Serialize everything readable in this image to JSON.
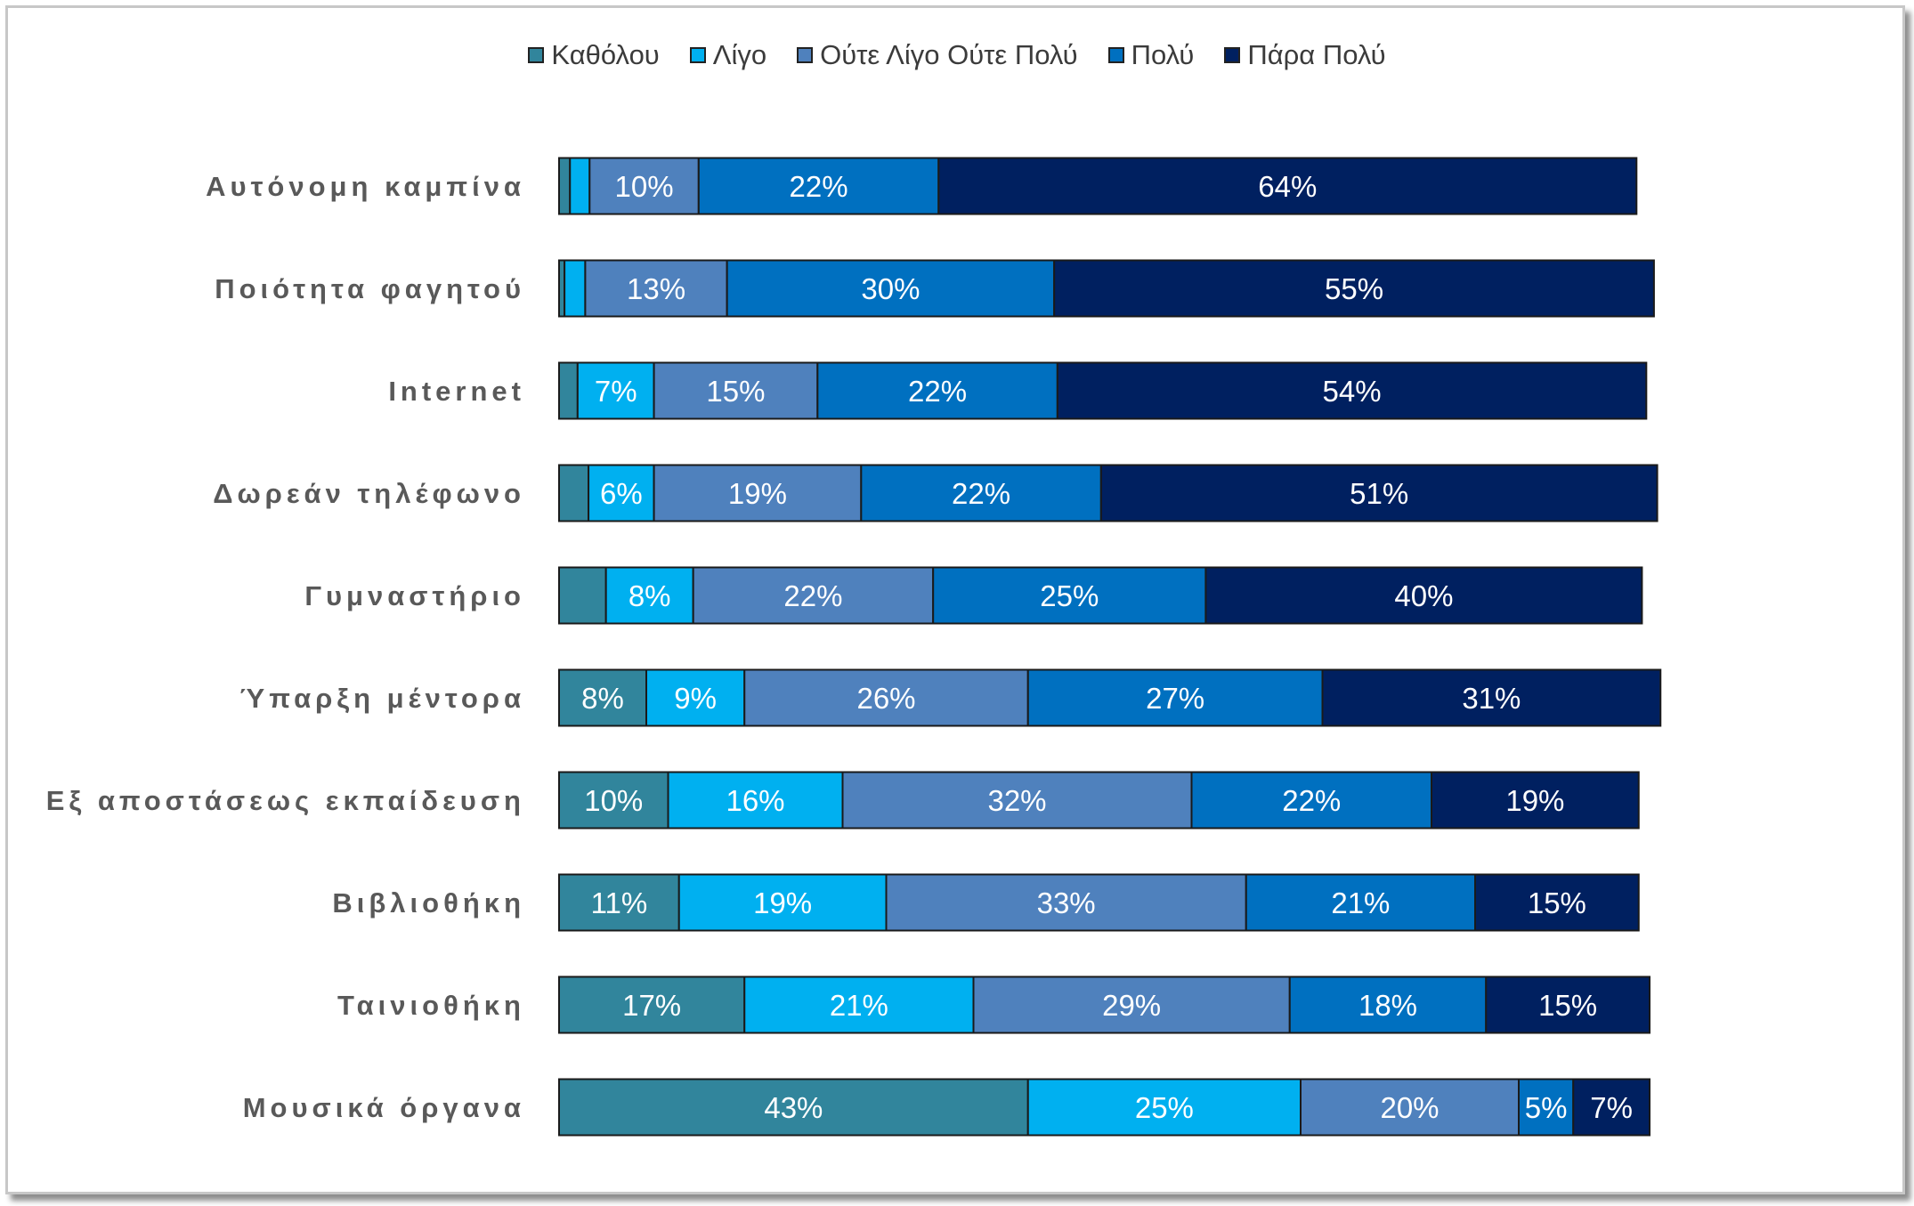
{
  "chart_data": {
    "type": "bar",
    "orientation": "horizontal",
    "stacked": true,
    "title": "",
    "xlabel": "",
    "ylabel": "",
    "categories": [
      "Αυτόνομη καμπίνα",
      "Ποιότητα φαγητού",
      "Internet",
      "Δωρεάν τηλέφωνο",
      "Γυμναστήριο",
      "Ύπαρξη μέντορα",
      "Εξ αποστάσεως εκπαίδευση",
      "Βιβλιοθήκη",
      "Ταινιοθήκη",
      "Μουσικά όργανα"
    ],
    "series": [
      {
        "name": "Καθόλου",
        "color": "#31859C",
        "values": [
          1,
          0.5,
          1.7,
          2.7,
          4.3,
          8,
          10,
          11,
          17,
          43
        ],
        "labels": [
          "",
          "",
          "",
          "",
          "",
          "8%",
          "10%",
          "11%",
          "17%",
          "43%"
        ]
      },
      {
        "name": "Λίγο",
        "color": "#00B0F0",
        "values": [
          1.8,
          1.9,
          7,
          6,
          8,
          9,
          16,
          19,
          21,
          25
        ],
        "labels": [
          "",
          "",
          "7%",
          "6%",
          "8%",
          "9%",
          "16%",
          "19%",
          "21%",
          "25%"
        ]
      },
      {
        "name": "Ούτε Λίγο Ούτε Πολύ",
        "color": "#4F81BD",
        "values": [
          10,
          13,
          15,
          19,
          22,
          26,
          32,
          33,
          29,
          20
        ],
        "labels": [
          "10%",
          "13%",
          "15%",
          "19%",
          "22%",
          "26%",
          "32%",
          "33%",
          "29%",
          "20%"
        ]
      },
      {
        "name": "Πολύ",
        "color": "#0070C0",
        "values": [
          22,
          30,
          22,
          22,
          25,
          27,
          22,
          21,
          18,
          5
        ],
        "labels": [
          "22%",
          "30%",
          "22%",
          "22%",
          "25%",
          "27%",
          "22%",
          "21%",
          "18%",
          "5%"
        ]
      },
      {
        "name": "Πάρα Πολύ",
        "color": "#002060",
        "values": [
          64,
          55,
          54,
          51,
          40,
          31,
          19,
          15,
          15,
          7
        ],
        "labels": [
          "64%",
          "55%",
          "54%",
          "51%",
          "40%",
          "31%",
          "19%",
          "15%",
          "15%",
          "7%"
        ]
      }
    ],
    "xlim": [
      0,
      100
    ],
    "grid": false,
    "legend_position": "top"
  }
}
